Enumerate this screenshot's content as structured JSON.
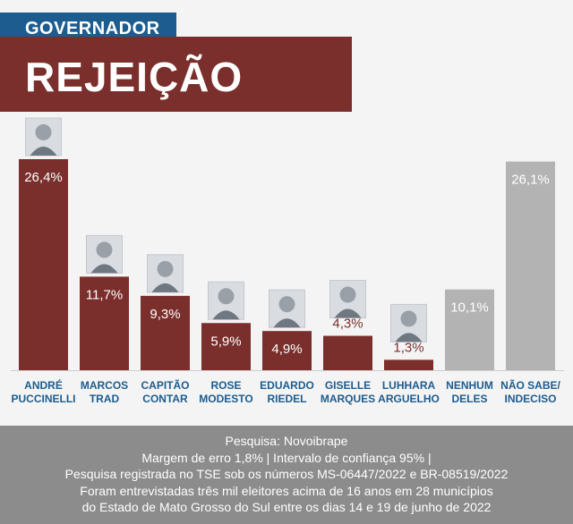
{
  "header": {
    "tag": "GOVERNADOR",
    "title": "REJEIÇÃO"
  },
  "chart_data": {
    "type": "bar",
    "title": "REJEIÇÃO",
    "categories": [
      [
        "ANDRÉ",
        "PUCCINELLI"
      ],
      [
        "MARCOS",
        "TRAD"
      ],
      [
        "CAPITÃO",
        "CONTAR"
      ],
      [
        "ROSE",
        "MODESTO"
      ],
      [
        "EDUARDO",
        "RIEDEL"
      ],
      [
        "GISELLE",
        "MARQUES"
      ],
      [
        "LUHHARA",
        "ARGUELHO"
      ],
      [
        "NENHUM",
        "DELES"
      ],
      [
        "NÃO SABE/",
        "INDECISO"
      ]
    ],
    "values": [
      26.4,
      11.7,
      9.3,
      5.9,
      4.9,
      4.3,
      1.3,
      10.1,
      26.1
    ],
    "value_labels": [
      "26,4%",
      "11,7%",
      "9,3%",
      "5,9%",
      "4,9%",
      "4,3%",
      "1,3%",
      "10,1%",
      "26,1%"
    ],
    "bar_colors": [
      "#7a2f2c",
      "#7a2f2c",
      "#7a2f2c",
      "#7a2f2c",
      "#7a2f2c",
      "#7a2f2c",
      "#7a2f2c",
      "#b3b3b3",
      "#b3b3b3"
    ],
    "has_photo": [
      true,
      true,
      true,
      true,
      true,
      true,
      true,
      false,
      false
    ],
    "ylim": [
      0,
      26.4
    ],
    "xlabel": "",
    "ylabel": ""
  },
  "colors": {
    "maroon": "#7a2f2c",
    "blue": "#1d5c8f",
    "gray_bar": "#b3b3b3",
    "category_label": "#1d5c8f"
  },
  "footer": {
    "lines": [
      "Pesquisa: Novoibrape",
      "Margem de erro 1,8% | Intervalo de confiança 95% |",
      "Pesquisa registrada no TSE sob os números MS-06447/2022 e BR-08519/2022",
      "Foram entrevistadas três mil eleitores acima de 16 anos em 28 municípios",
      "do Estado de Mato Grosso do Sul entre os dias 14 e 19 de junho de 2022"
    ]
  }
}
